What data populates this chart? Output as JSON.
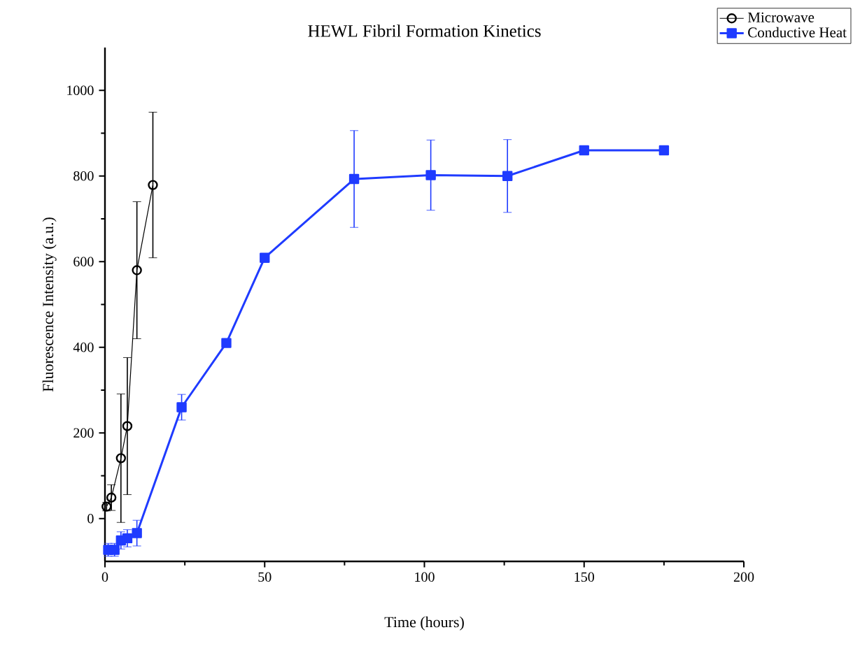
{
  "chart_data": {
    "type": "line",
    "title": "HEWL Fibril Formation Kinetics",
    "xlabel": "Time (hours)",
    "ylabel": "Fluorescence Intensity (a.u.)",
    "xlim": [
      0,
      200
    ],
    "ylim": [
      -100,
      1100
    ],
    "xticks": [
      0,
      50,
      100,
      150,
      200
    ],
    "yticks": [
      0,
      200,
      400,
      600,
      800,
      1000
    ],
    "legend": "top right",
    "grid": false,
    "series": [
      {
        "name": "Microwave",
        "color": "#000000",
        "marker": "circle",
        "x": [
          0.5,
          2,
          5,
          7,
          10,
          15
        ],
        "values": [
          28,
          49,
          141,
          216,
          580,
          779
        ],
        "errors": [
          10,
          30,
          150,
          160,
          160,
          170
        ]
      },
      {
        "name": "Conductive Heat",
        "color": "#1f3bff",
        "marker": "square",
        "x": [
          1,
          3,
          5,
          7,
          10,
          24,
          38,
          50,
          78,
          102,
          126,
          150,
          175
        ],
        "values": [
          -73,
          -73,
          -51,
          -46,
          -34,
          260,
          410,
          609,
          793,
          802,
          800,
          860,
          860
        ],
        "errors": [
          15,
          15,
          20,
          20,
          30,
          30,
          null,
          null,
          113,
          82,
          85,
          null,
          null
        ]
      }
    ]
  }
}
